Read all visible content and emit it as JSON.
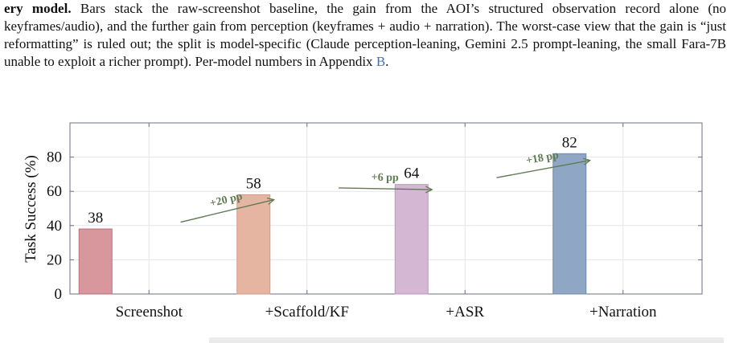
{
  "caption": {
    "lead": "ery model.",
    "body": " Bars stack the raw-screenshot baseline, the gain from the AOI’s structured observation record alone (no keyframes/audio), and the further gain from perception (keyframes + audio + narration). The worst-case view that the gain is “just reformatting” is ruled out; the split is model-specific (Claude perception-leaning, Gemini 2.5 prompt-leaning, the small Fara-7B unable to exploit a richer prompt). Per-model numbers in Appendix ",
    "appendix_ref": "B",
    "end": "."
  },
  "chart_data": {
    "type": "bar",
    "categories": [
      "Screenshot",
      "+Scaffold/KF",
      "+ASR",
      "+Narration"
    ],
    "values": [
      38,
      58,
      64,
      82
    ],
    "bar_colors": [
      "#d8979c",
      "#e6b5a2",
      "#d4b7d2",
      "#8fa6c5"
    ],
    "bar_edge_colors": [
      "#b9707a",
      "#d19a86",
      "#bb98bb",
      "#6f88ab"
    ],
    "ylabel": "Task Success (%)",
    "xlabel": "",
    "ylim": [
      0,
      100
    ],
    "yticks": [
      0,
      20,
      40,
      60,
      80
    ],
    "grid": true,
    "arrows": [
      {
        "label": "+20 pp",
        "from": [
          0.2,
          42
        ],
        "to": [
          1.0,
          55
        ]
      },
      {
        "label": "+6 pp",
        "from": [
          1.2,
          62
        ],
        "to": [
          2.0,
          61
        ]
      },
      {
        "label": "+18 pp",
        "from": [
          2.2,
          68
        ],
        "to": [
          3.0,
          78
        ]
      }
    ],
    "arrow_color": "#5f7b52"
  }
}
